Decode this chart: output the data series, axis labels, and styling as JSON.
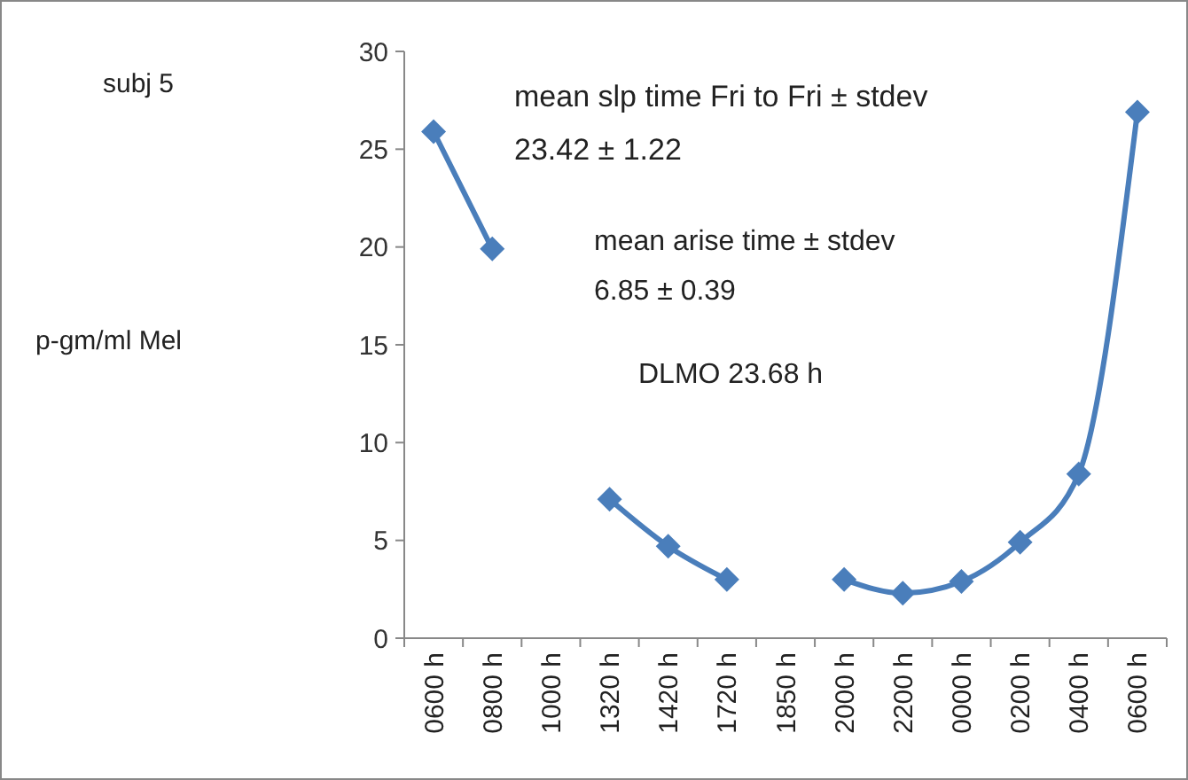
{
  "chart_data": {
    "type": "line",
    "categories": [
      "0600 h",
      "0800 h",
      "1000 h",
      "1320 h",
      "1420 h",
      "1720 h",
      "1850 h",
      "2000 h",
      "2200 h",
      "0000 h",
      "0200 h",
      "0400 h",
      "0600 h"
    ],
    "series": [
      {
        "color": "#4a7ebb",
        "values": [
          25.9,
          19.9,
          null,
          7.1,
          4.7,
          3.0,
          null,
          3.0,
          2.3,
          2.9,
          4.9,
          8.4,
          26.9
        ]
      }
    ],
    "ylim": [
      0,
      30
    ],
    "yticks": [
      0,
      5,
      10,
      15,
      20,
      25,
      30
    ],
    "grid": false,
    "marker": "diamond",
    "line_style": "solid",
    "annotations": [
      "subj 5",
      "p-gm/ml Mel",
      "mean slp time Fri to Fri ± stdev",
      "23.42 ± 1.22",
      "mean arise time ± stdev",
      "6.85 ± 0.39",
      "DLMO 23.68 h"
    ]
  }
}
